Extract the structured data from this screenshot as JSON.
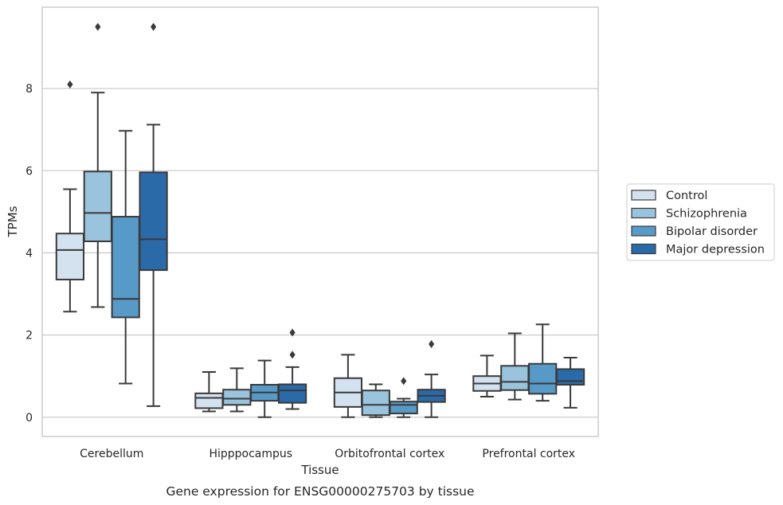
{
  "caption": "Gene expression for ENSG00000275703 by tissue",
  "chart_data": {
    "type": "boxplot",
    "title": "",
    "xlabel": "Tissue",
    "ylabel": "TPMs",
    "ylim": [
      -0.47,
      9.98
    ],
    "yticks": [
      0,
      2,
      4,
      6,
      8
    ],
    "grid": "horizontal",
    "legend_position": "right",
    "categories": [
      "Cerebellum",
      "Hipppocampus",
      "Orbitofrontal cortex",
      "Prefrontal cortex"
    ],
    "series": [
      {
        "name": "Control",
        "color": "#d4e2f0",
        "boxes": [
          {
            "q1": 3.35,
            "median": 4.07,
            "q3": 4.47,
            "whisker_low": 2.57,
            "whisker_high": 5.55,
            "outliers": [
              8.1
            ]
          },
          {
            "q1": 0.22,
            "median": 0.47,
            "q3": 0.58,
            "whisker_low": 0.14,
            "whisker_high": 1.1,
            "outliers": []
          },
          {
            "q1": 0.25,
            "median": 0.6,
            "q3": 0.95,
            "whisker_low": 0.0,
            "whisker_high": 1.52,
            "outliers": []
          },
          {
            "q1": 0.64,
            "median": 0.82,
            "q3": 1.0,
            "whisker_low": 0.5,
            "whisker_high": 1.5,
            "outliers": []
          }
        ]
      },
      {
        "name": "Schizophrenia",
        "color": "#9ac3dd",
        "boxes": [
          {
            "q1": 4.28,
            "median": 4.97,
            "q3": 5.98,
            "whisker_low": 2.68,
            "whisker_high": 7.9,
            "outliers": [
              9.5
            ]
          },
          {
            "q1": 0.3,
            "median": 0.45,
            "q3": 0.67,
            "whisker_low": 0.14,
            "whisker_high": 1.19,
            "outliers": []
          },
          {
            "q1": 0.05,
            "median": 0.3,
            "q3": 0.65,
            "whisker_low": 0.0,
            "whisker_high": 0.8,
            "outliers": []
          },
          {
            "q1": 0.66,
            "median": 0.86,
            "q3": 1.25,
            "whisker_low": 0.43,
            "whisker_high": 2.04,
            "outliers": []
          }
        ]
      },
      {
        "name": "Bipolar disorder",
        "color": "#5799c7",
        "boxes": [
          {
            "q1": 2.43,
            "median": 2.88,
            "q3": 4.88,
            "whisker_low": 0.82,
            "whisker_high": 6.97,
            "outliers": []
          },
          {
            "q1": 0.4,
            "median": 0.6,
            "q3": 0.79,
            "whisker_low": 0.0,
            "whisker_high": 1.38,
            "outliers": []
          },
          {
            "q1": 0.09,
            "median": 0.3,
            "q3": 0.38,
            "whisker_low": 0.0,
            "whisker_high": 0.45,
            "outliers": [
              0.88
            ]
          },
          {
            "q1": 0.57,
            "median": 0.82,
            "q3": 1.3,
            "whisker_low": 0.4,
            "whisker_high": 2.26,
            "outliers": []
          }
        ]
      },
      {
        "name": "Major depression",
        "color": "#2b6aa8",
        "boxes": [
          {
            "q1": 3.58,
            "median": 4.33,
            "q3": 5.96,
            "whisker_low": 0.27,
            "whisker_high": 7.12,
            "outliers": [
              9.5
            ]
          },
          {
            "q1": 0.35,
            "median": 0.65,
            "q3": 0.8,
            "whisker_low": 0.2,
            "whisker_high": 1.22,
            "outliers": [
              1.52,
              2.06
            ]
          },
          {
            "q1": 0.37,
            "median": 0.52,
            "q3": 0.67,
            "whisker_low": 0.0,
            "whisker_high": 1.04,
            "outliers": [
              1.78
            ]
          },
          {
            "q1": 0.79,
            "median": 0.88,
            "q3": 1.17,
            "whisker_low": 0.23,
            "whisker_high": 1.45,
            "outliers": []
          }
        ]
      }
    ]
  }
}
